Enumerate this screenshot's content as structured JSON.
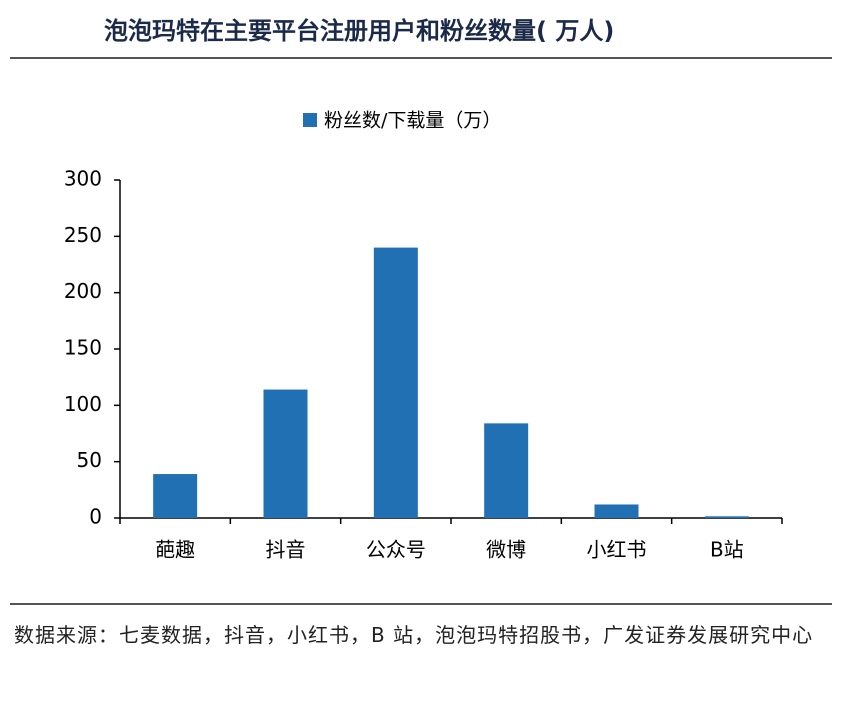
{
  "chart_data": {
    "type": "bar",
    "title": "泡泡玛特在主要平台注册用户和粉丝数量( 万人)",
    "categories": [
      "葩趣",
      "抖音",
      "公众号",
      "微博",
      "小红书",
      "B站"
    ],
    "series": [
      {
        "name": "粉丝数/下载量（万）",
        "color": "#2170b3",
        "values": [
          39,
          114,
          240,
          84,
          12,
          1.5
        ]
      }
    ],
    "ylim": [
      0,
      300
    ],
    "yticks": [
      0,
      50,
      100,
      150,
      200,
      250,
      300
    ],
    "source": "数据来源：七麦数据，抖音，小红书，B 站，泡泡玛特招股书，广发证券发展研究中心"
  }
}
